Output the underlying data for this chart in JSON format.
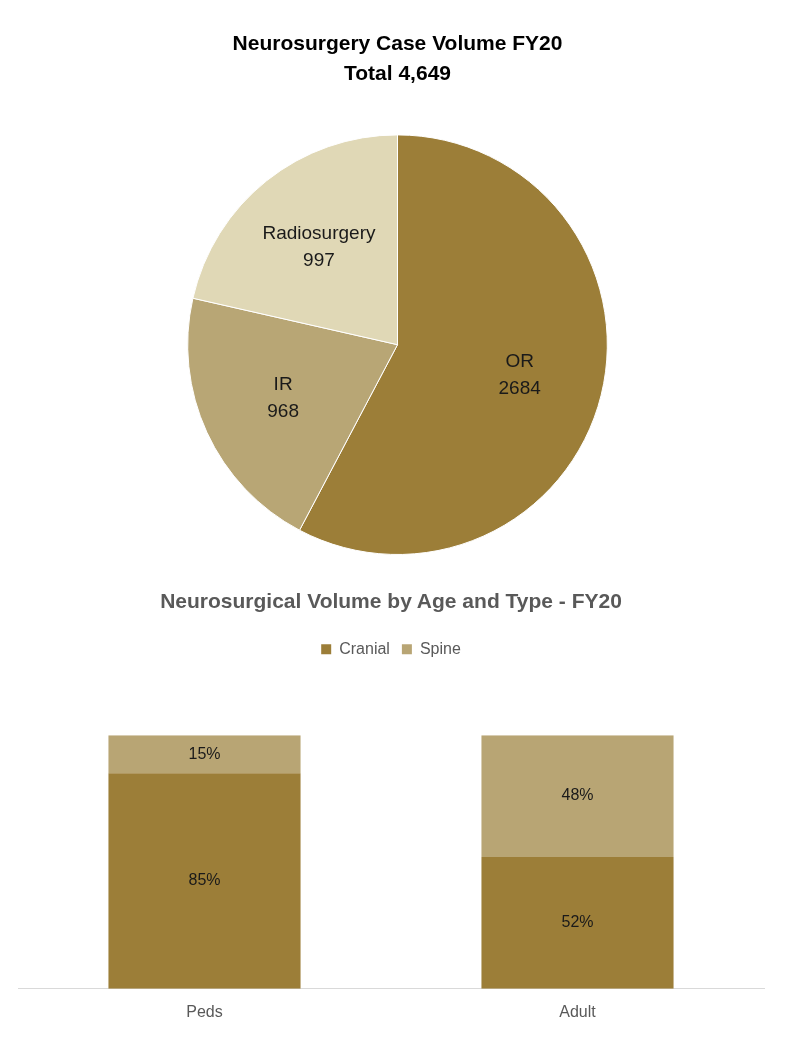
{
  "chart_data": [
    {
      "type": "pie",
      "title": "Neurosurgery Case Volume FY20",
      "subtitle": "Total 4,649",
      "categories": [
        "OR",
        "IR",
        "Radiosurgery"
      ],
      "values": [
        2684,
        968,
        997
      ],
      "colors": [
        "#9c7e38",
        "#b8a675",
        "#e0d8b6"
      ],
      "data_labels": true,
      "legend": false
    },
    {
      "type": "bar",
      "title": "Neurosurgical Volume by Age and Type - FY20",
      "categories": [
        "Peds",
        "Adult"
      ],
      "series": [
        {
          "name": "Cranial",
          "color": "#9c7e38",
          "values": [
            85,
            52
          ],
          "value_labels": [
            "85%",
            "52%"
          ]
        },
        {
          "name": "Spine",
          "color": "#b8a574",
          "values": [
            15,
            48
          ],
          "value_labels": [
            "15%",
            "48%"
          ]
        }
      ],
      "stacked": true,
      "ylim": [
        0,
        100
      ],
      "tick_labels": "x",
      "grid": false,
      "legend": "top"
    }
  ]
}
